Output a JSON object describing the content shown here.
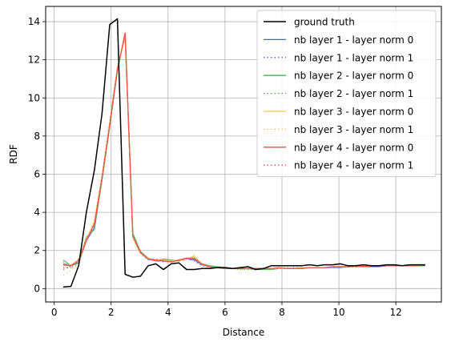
{
  "chart_data": {
    "type": "line",
    "title": "",
    "xlabel": "Distance",
    "ylabel": "RDF",
    "xlim": [
      -0.3,
      13.6
    ],
    "ylim": [
      -0.7,
      14.8
    ],
    "xticks": [
      0,
      2,
      4,
      6,
      8,
      10,
      12
    ],
    "yticks": [
      0,
      2,
      4,
      6,
      8,
      10,
      12,
      14
    ],
    "grid": true,
    "legend_position": "top-right",
    "x": [
      0.32,
      0.59,
      0.86,
      1.13,
      1.41,
      1.68,
      1.95,
      2.22,
      2.49,
      2.76,
      3.03,
      3.3,
      3.57,
      3.84,
      4.11,
      4.38,
      4.65,
      4.92,
      5.19,
      5.46,
      5.73,
      6.0,
      6.27,
      6.54,
      6.81,
      7.08,
      7.35,
      7.62,
      7.89,
      8.16,
      8.43,
      8.7,
      8.97,
      9.24,
      9.51,
      9.78,
      10.05,
      10.32,
      10.59,
      10.86,
      11.14,
      11.41,
      11.68,
      11.95,
      12.22,
      12.49,
      12.76,
      13.03
    ],
    "series": [
      {
        "name": "ground truth",
        "color": "#000000",
        "dash": "solid",
        "values": [
          0.08,
          0.12,
          1.2,
          4.0,
          6.2,
          9.2,
          13.85,
          14.15,
          0.75,
          0.6,
          0.65,
          1.2,
          1.3,
          1.0,
          1.3,
          1.35,
          1.0,
          1.0,
          1.05,
          1.05,
          1.1,
          1.1,
          1.05,
          1.1,
          1.15,
          1.0,
          1.05,
          1.2,
          1.2,
          1.2,
          1.2,
          1.2,
          1.25,
          1.2,
          1.25,
          1.25,
          1.3,
          1.2,
          1.2,
          1.25,
          1.2,
          1.2,
          1.25,
          1.25,
          1.2,
          1.25,
          1.25,
          1.25
        ]
      },
      {
        "name": "nb layer 1 - layer norm 0",
        "color": "#4e5cf5",
        "dash": "solid",
        "values": [
          1.3,
          1.2,
          1.35,
          2.5,
          3.2,
          5.8,
          8.6,
          11.5,
          13.3,
          2.8,
          1.9,
          1.55,
          1.45,
          1.45,
          1.4,
          1.5,
          1.55,
          1.5,
          1.25,
          1.15,
          1.1,
          1.05,
          1.05,
          1.05,
          1.05,
          1.05,
          1.05,
          1.05,
          1.05,
          1.05,
          1.05,
          1.1,
          1.1,
          1.1,
          1.1,
          1.1,
          1.1,
          1.15,
          1.15,
          1.15,
          1.15,
          1.15,
          1.2,
          1.2,
          1.2,
          1.2,
          1.2,
          1.2
        ]
      },
      {
        "name": "nb layer 1 - layer norm 1",
        "color": "#4e5cf5",
        "dash": "dotted",
        "values": [
          1.0,
          1.2,
          1.5,
          2.6,
          3.3,
          5.9,
          8.7,
          11.6,
          13.2,
          2.7,
          1.85,
          1.5,
          1.5,
          1.4,
          1.45,
          1.5,
          1.6,
          1.45,
          1.2,
          1.1,
          1.1,
          1.05,
          1.05,
          1.05,
          1.05,
          1.05,
          1.05,
          1.05,
          1.05,
          1.05,
          1.1,
          1.1,
          1.1,
          1.1,
          1.1,
          1.1,
          1.15,
          1.15,
          1.15,
          1.15,
          1.15,
          1.2,
          1.2,
          1.2,
          1.2,
          1.2,
          1.2,
          1.2
        ]
      },
      {
        "name": "nb layer 2 - layer norm 0",
        "color": "#4caf50",
        "dash": "solid",
        "values": [
          1.5,
          1.2,
          1.4,
          2.7,
          3.1,
          5.7,
          8.5,
          11.4,
          13.4,
          2.9,
          1.95,
          1.6,
          1.45,
          1.55,
          1.5,
          1.45,
          1.6,
          1.6,
          1.3,
          1.2,
          1.15,
          1.1,
          1.05,
          1.05,
          1.05,
          1.0,
          1.0,
          1.0,
          1.05,
          1.05,
          1.05,
          1.05,
          1.1,
          1.1,
          1.1,
          1.15,
          1.15,
          1.15,
          1.15,
          1.15,
          1.2,
          1.2,
          1.2,
          1.2,
          1.2,
          1.2,
          1.2,
          1.2
        ]
      },
      {
        "name": "nb layer 2 - layer norm 1",
        "color": "#4caf50",
        "dash": "dotted",
        "values": [
          1.4,
          1.1,
          1.3,
          2.6,
          3.4,
          5.8,
          8.6,
          11.5,
          13.3,
          2.8,
          1.9,
          1.55,
          1.55,
          1.5,
          1.45,
          1.5,
          1.55,
          1.55,
          1.25,
          1.15,
          1.1,
          1.05,
          1.05,
          1.0,
          1.0,
          1.0,
          1.05,
          1.0,
          1.05,
          1.05,
          1.05,
          1.1,
          1.1,
          1.1,
          1.1,
          1.15,
          1.15,
          1.15,
          1.15,
          1.2,
          1.2,
          1.2,
          1.2,
          1.2,
          1.2,
          1.2,
          1.25,
          1.25
        ]
      },
      {
        "name": "nb layer 3 - layer norm 0",
        "color": "#ffc24d",
        "dash": "solid",
        "values": [
          1.2,
          1.25,
          1.45,
          2.6,
          3.5,
          5.9,
          8.7,
          11.6,
          13.2,
          2.7,
          1.85,
          1.6,
          1.5,
          1.5,
          1.45,
          1.5,
          1.55,
          1.7,
          1.3,
          1.15,
          1.1,
          1.05,
          1.05,
          1.05,
          1.05,
          1.05,
          1.05,
          1.05,
          1.05,
          1.05,
          1.05,
          1.1,
          1.1,
          1.1,
          1.1,
          1.15,
          1.15,
          1.15,
          1.15,
          1.15,
          1.2,
          1.2,
          1.2,
          1.2,
          1.2,
          1.2,
          1.2,
          1.25
        ]
      },
      {
        "name": "nb layer 3 - layer norm 1",
        "color": "#ffc24d",
        "dash": "dotted",
        "values": [
          0.7,
          0.95,
          1.3,
          2.5,
          3.6,
          6.0,
          8.8,
          11.7,
          13.1,
          2.6,
          1.8,
          1.55,
          1.5,
          1.5,
          1.45,
          1.45,
          1.5,
          1.75,
          1.25,
          1.1,
          1.1,
          1.05,
          1.05,
          1.0,
          1.0,
          1.05,
          1.05,
          1.05,
          1.05,
          1.05,
          1.05,
          1.05,
          1.1,
          1.1,
          1.1,
          1.1,
          1.15,
          1.15,
          1.15,
          1.15,
          1.2,
          1.2,
          1.2,
          1.2,
          1.2,
          1.2,
          1.25,
          1.25
        ]
      },
      {
        "name": "nb layer 4 - layer norm 0",
        "color": "#ee4b4b",
        "dash": "solid",
        "values": [
          1.25,
          1.2,
          1.5,
          2.5,
          3.4,
          5.8,
          8.6,
          11.5,
          13.4,
          2.75,
          1.9,
          1.55,
          1.5,
          1.45,
          1.4,
          1.5,
          1.6,
          1.55,
          1.3,
          1.15,
          1.1,
          1.05,
          1.05,
          1.05,
          1.05,
          1.05,
          1.05,
          1.05,
          1.1,
          1.05,
          1.05,
          1.05,
          1.1,
          1.1,
          1.1,
          1.15,
          1.15,
          1.15,
          1.2,
          1.15,
          1.2,
          1.2,
          1.2,
          1.2,
          1.2,
          1.2,
          1.2,
          1.25
        ]
      },
      {
        "name": "nb layer 4 - layer norm 1",
        "color": "#ee4b4b",
        "dash": "dotted",
        "values": [
          1.1,
          1.1,
          1.55,
          2.6,
          3.3,
          5.85,
          8.65,
          11.55,
          13.35,
          2.75,
          1.9,
          1.55,
          1.45,
          1.45,
          1.4,
          1.45,
          1.55,
          1.6,
          1.25,
          1.15,
          1.1,
          1.05,
          1.05,
          1.05,
          1.05,
          1.05,
          1.05,
          1.05,
          1.05,
          1.1,
          1.05,
          1.05,
          1.1,
          1.1,
          1.1,
          1.15,
          1.15,
          1.15,
          1.15,
          1.2,
          1.2,
          1.2,
          1.2,
          1.2,
          1.2,
          1.2,
          1.25,
          1.25
        ]
      }
    ]
  }
}
